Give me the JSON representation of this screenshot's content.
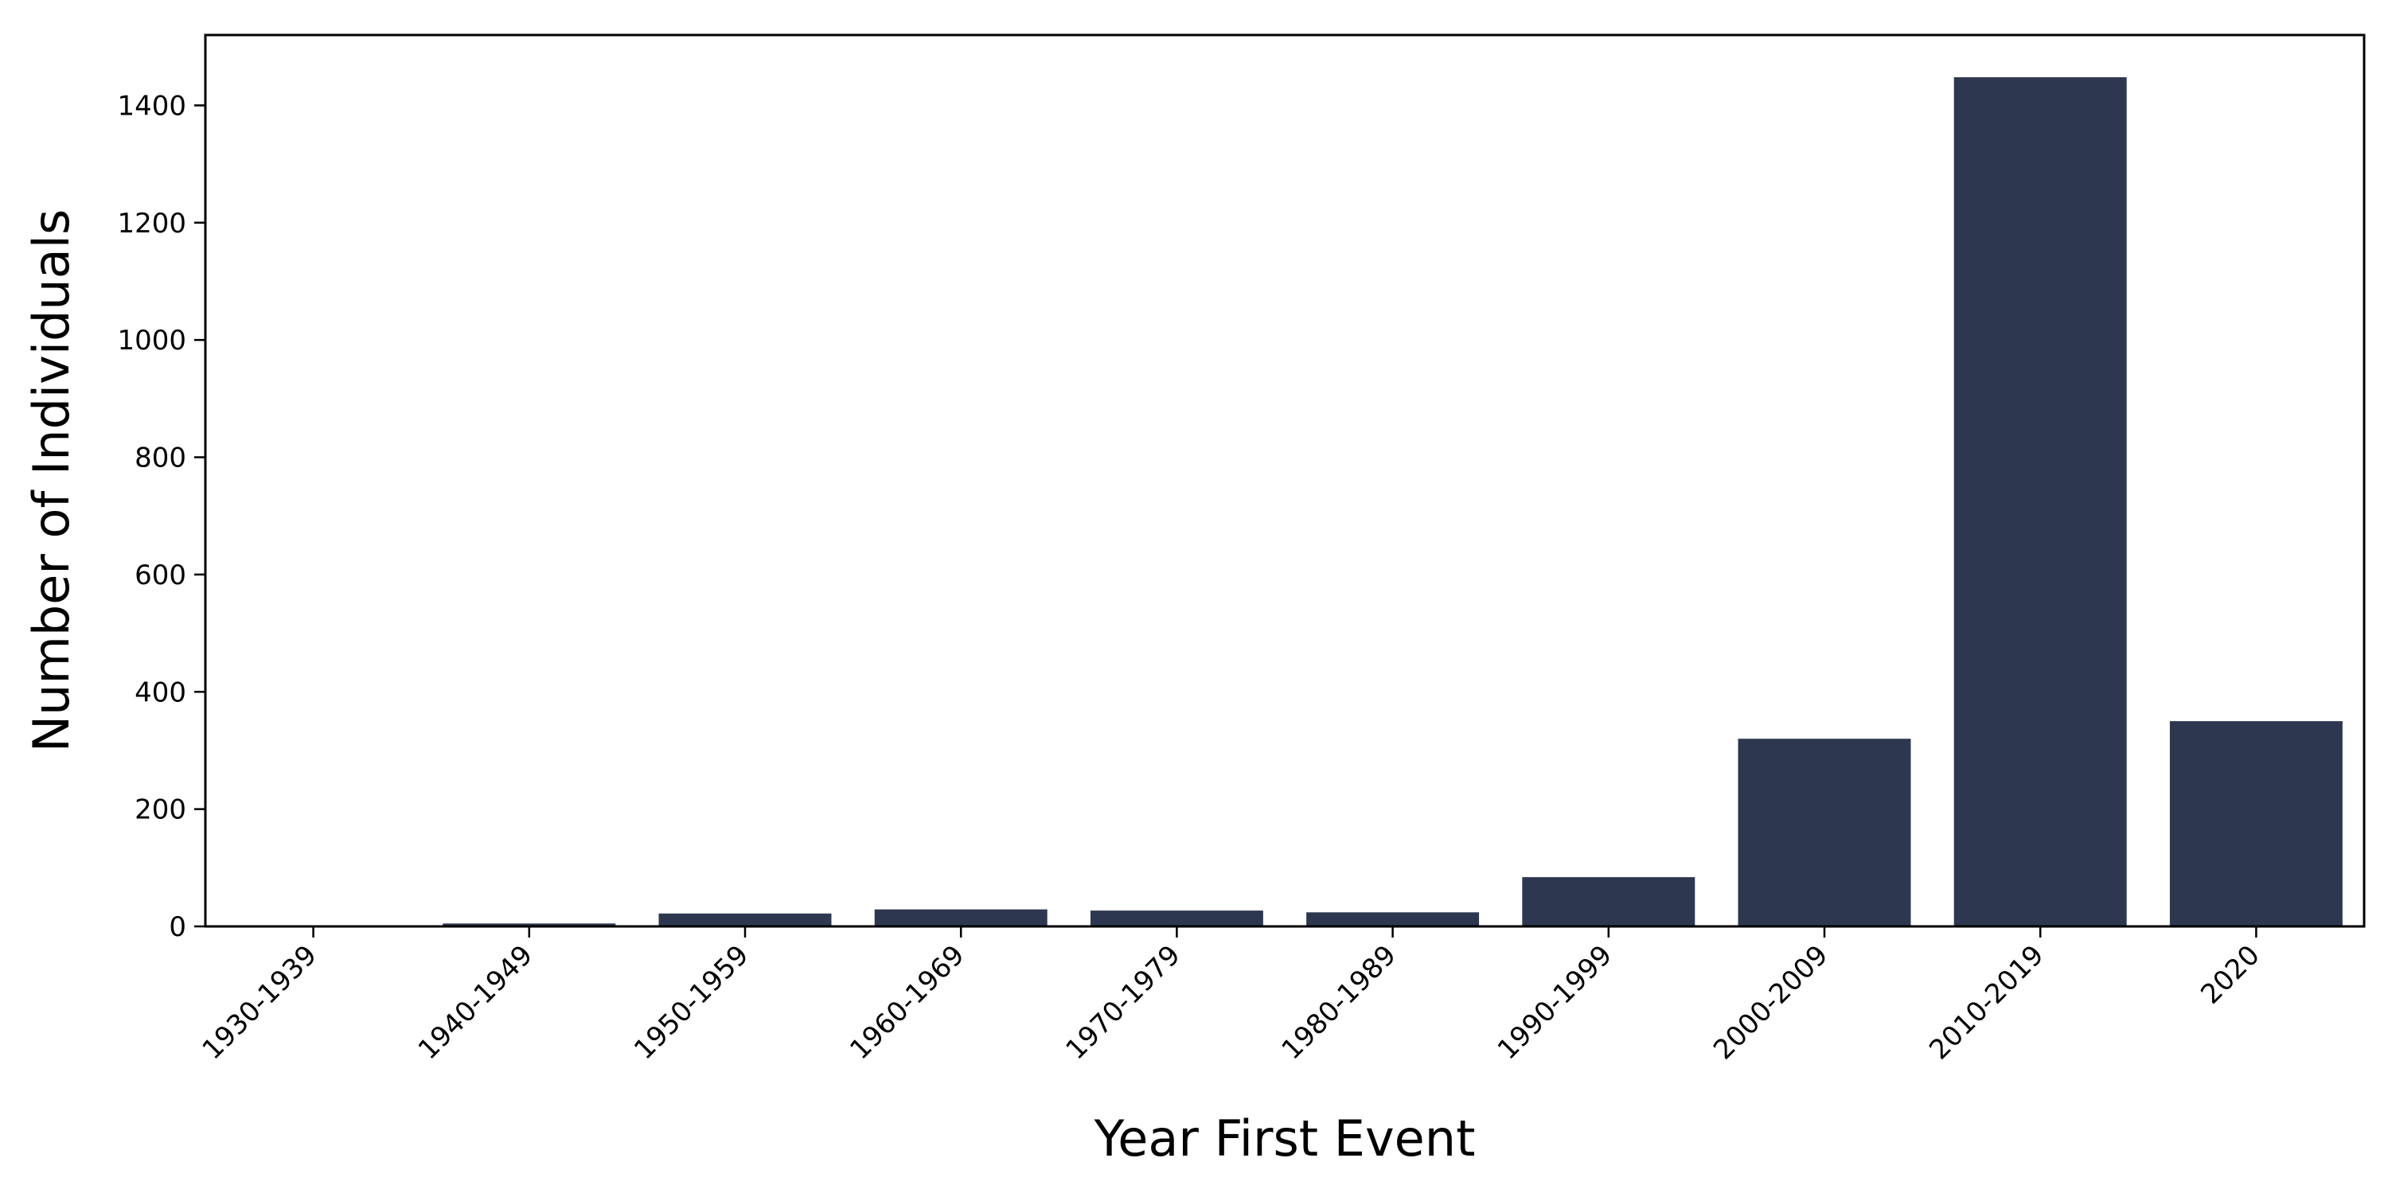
{
  "chart_data": {
    "type": "bar",
    "xlabel": "Year First Event",
    "ylabel": "Number of Individuals",
    "categories": [
      "1930-1939",
      "1940-1949",
      "1950-1959",
      "1960-1969",
      "1970-1979",
      "1980-1989",
      "1990-1999",
      "2000-2009",
      "2010-2019",
      "2020"
    ],
    "values": [
      1,
      5,
      22,
      29,
      27,
      24,
      84,
      320,
      1448,
      350
    ],
    "ylim": [
      0,
      1520
    ],
    "yticks": [
      0,
      200,
      400,
      600,
      800,
      1000,
      1200,
      1400
    ],
    "bar_color": "#2d3850",
    "grid": false,
    "legend": "none"
  }
}
